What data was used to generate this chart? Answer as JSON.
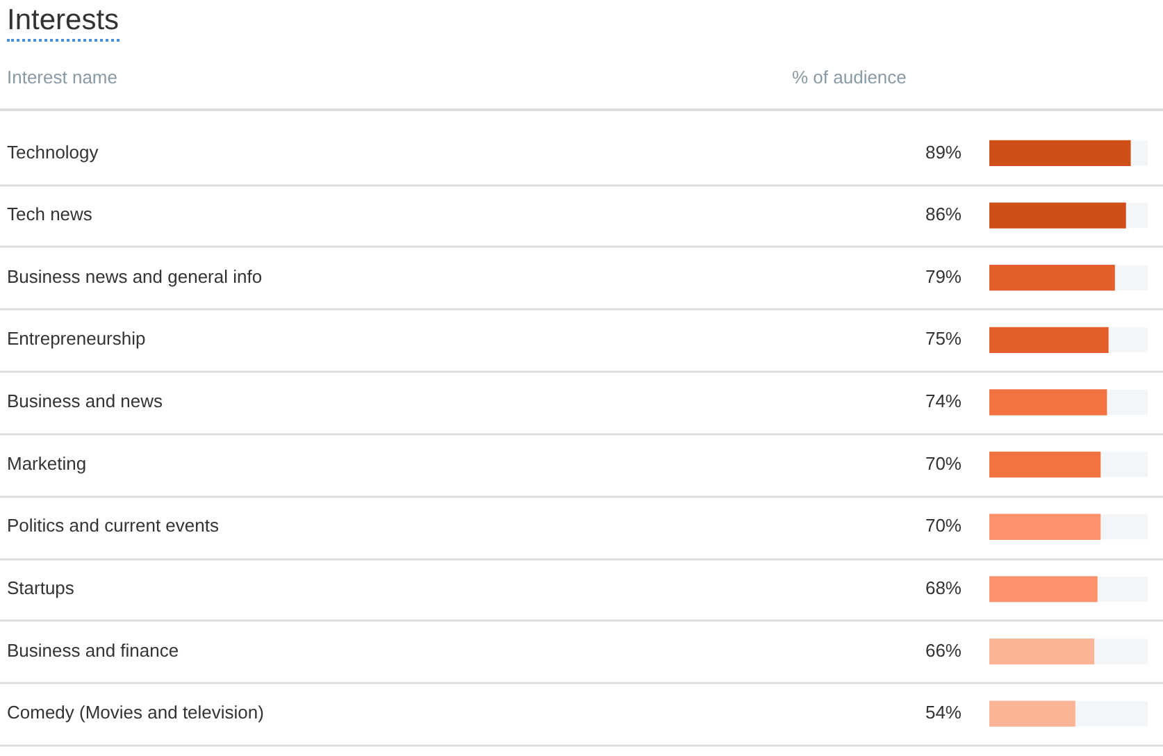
{
  "chart_data": {
    "type": "bar",
    "orientation": "horizontal",
    "title": "Interests",
    "ylabel": "Interest name",
    "xlabel": "% of audience",
    "categories": [
      "Technology",
      "Tech news",
      "Business news and general info",
      "Entrepreneurship",
      "Business and news",
      "Marketing",
      "Politics and current events",
      "Startups",
      "Business and finance",
      "Comedy (Movies and television)"
    ],
    "values": [
      89,
      86,
      79,
      75,
      74,
      70,
      70,
      68,
      66,
      54
    ],
    "value_labels": [
      "89%",
      "86%",
      "79%",
      "75%",
      "74%",
      "70%",
      "70%",
      "68%",
      "66%",
      "54%"
    ],
    "colors": [
      "#d04e18",
      "#d04e18",
      "#e35e2a",
      "#e35e2a",
      "#f47241",
      "#f47241",
      "#fc916c",
      "#fc916c",
      "#fdb396",
      "#fdb396"
    ],
    "xlim": [
      0,
      100
    ],
    "tick_labels": "y",
    "grid": "y",
    "legend": false
  }
}
